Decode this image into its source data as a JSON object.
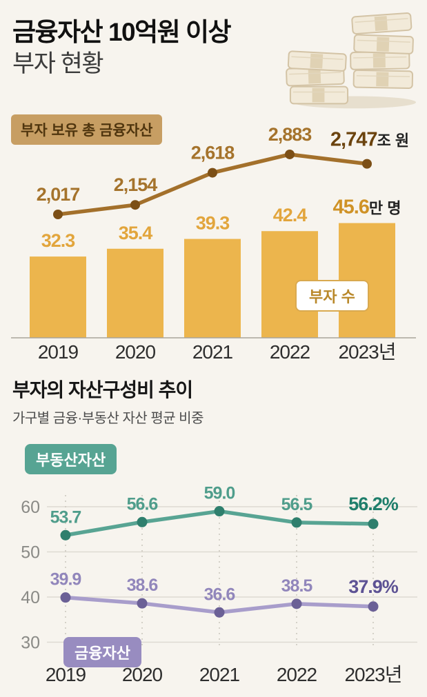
{
  "colors": {
    "page_bg": "#f7f4ee",
    "bar": "#ecb54d",
    "line": "#a3702b",
    "line_dot": "#7c4f16",
    "teal": "#58a493",
    "teal_dot": "#2f7f6d",
    "purple": "#a89dcb",
    "purple_dot": "#6b6096",
    "badge_tan_bg": "#c79e63",
    "badge_white_border": "#d9a94f",
    "grid": "#dedad2",
    "dashed_grid": "#c9c5bc"
  },
  "header": {
    "title_line1": "금융자산 10억원 이상",
    "title_line2": "부자 현황",
    "icon": "money-stacks-icon"
  },
  "chart1_ui": {
    "badge_line": "부자 보유 총 금융자산",
    "badge_bar": "부자 수"
  },
  "section2": {
    "title": "부자의 자산구성비 추이",
    "subtitle": "가구별 금융·부동산 자산 평균 비중",
    "badge_realestate": "부동산자산",
    "badge_financial": "금융자산"
  },
  "chart_data": [
    {
      "type": "bar",
      "title": "금융자산 10억원 이상 부자 현황",
      "categories": [
        "2019",
        "2020",
        "2021",
        "2022",
        "2023년"
      ],
      "series": [
        {
          "name": "부자 보유 총 금융자산",
          "type": "line",
          "values": [
            2017,
            2154,
            2618,
            2883,
            2747
          ],
          "labels": [
            "2,017",
            "2,154",
            "2,618",
            "2,883",
            "2,747"
          ],
          "unit": "조 원"
        },
        {
          "name": "부자 수",
          "type": "bar",
          "values": [
            32.3,
            35.4,
            39.3,
            42.4,
            45.6
          ],
          "labels": [
            "32.3",
            "35.4",
            "39.3",
            "42.4",
            "45.6"
          ],
          "unit": "만 명"
        }
      ],
      "grid": false,
      "legend_position": "inline-badges"
    },
    {
      "type": "line",
      "title": "부자의 자산구성비 추이",
      "subtitle": "가구별 금융·부동산 자산 평균 비중",
      "categories": [
        "2019",
        "2020",
        "2021",
        "2022",
        "2023년"
      ],
      "series": [
        {
          "name": "부동산자산",
          "values": [
            53.7,
            56.6,
            59.0,
            56.5,
            56.2
          ],
          "labels": [
            "53.7",
            "56.6",
            "59.0",
            "56.5"
          ],
          "last_label": "56.2%"
        },
        {
          "name": "금융자산",
          "values": [
            39.9,
            38.6,
            36.6,
            38.5,
            37.9
          ],
          "labels": [
            "39.9",
            "38.6",
            "36.6",
            "38.5"
          ],
          "last_label": "37.9%"
        }
      ],
      "yticks": [
        "60",
        "50",
        "40",
        "30"
      ],
      "ylim": [
        27,
        65
      ],
      "grid": true,
      "legend_position": "inline-badges"
    }
  ]
}
